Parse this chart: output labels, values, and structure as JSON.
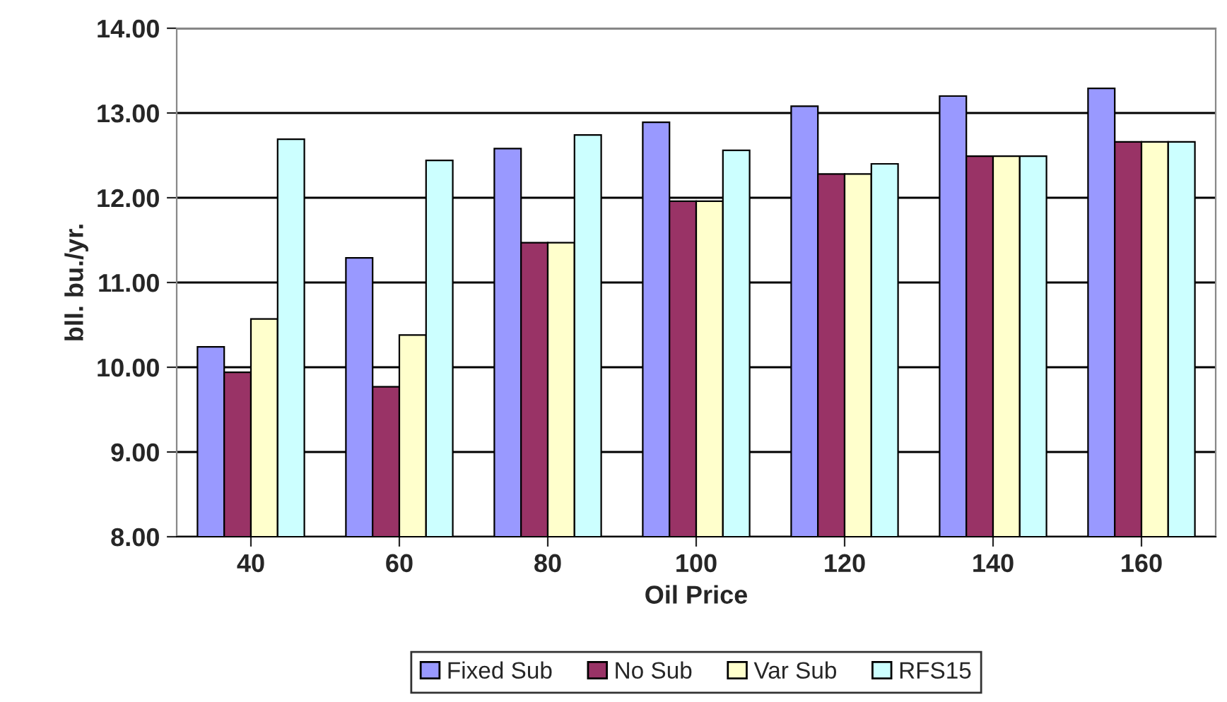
{
  "chart_data": {
    "type": "bar",
    "xlabel": "Oil Price",
    "ylabel": "bll. bu./yr.",
    "categories": [
      "40",
      "60",
      "80",
      "100",
      "120",
      "140",
      "160"
    ],
    "series": [
      {
        "name": "Fixed Sub",
        "color": "#9999ff",
        "values": [
          10.24,
          11.29,
          12.58,
          12.89,
          13.08,
          13.2,
          13.29
        ]
      },
      {
        "name": "No Sub",
        "color": "#993366",
        "values": [
          9.94,
          9.77,
          11.47,
          11.96,
          12.28,
          12.49,
          12.66
        ]
      },
      {
        "name": "Var Sub",
        "color": "#ffffcc",
        "values": [
          10.57,
          10.38,
          11.47,
          11.96,
          12.28,
          12.49,
          12.66
        ]
      },
      {
        "name": "RFS15",
        "color": "#ccffff",
        "values": [
          12.69,
          12.44,
          12.74,
          12.56,
          12.4,
          12.49,
          12.66
        ]
      }
    ],
    "ylim": [
      8,
      14
    ],
    "yticks": [
      {
        "value": 8,
        "label": "8.00"
      },
      {
        "value": 9,
        "label": "9.00"
      },
      {
        "value": 10,
        "label": "10.00"
      },
      {
        "value": 11,
        "label": "11.00"
      },
      {
        "value": 12,
        "label": "12.00"
      },
      {
        "value": 13,
        "label": "13.00"
      },
      {
        "value": 14,
        "label": "14.00"
      }
    ],
    "grid": "y",
    "legend": "bottom"
  }
}
